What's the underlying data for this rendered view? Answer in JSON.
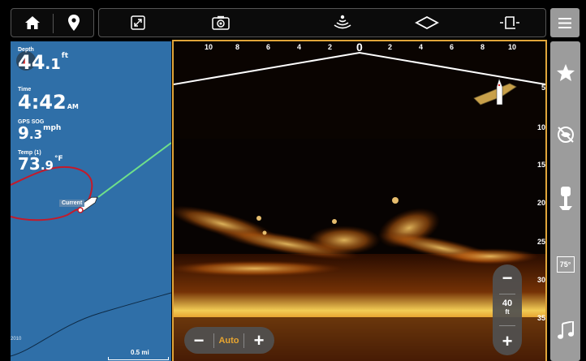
{
  "topbar": {
    "left_icons": [
      "home-icon",
      "map-pin-icon"
    ],
    "mid_icons": [
      "expand-icon",
      "camera-settings-icon",
      "sonar-ping-icon",
      "down-imaging-icon",
      "crop-icon"
    ],
    "menu_icon": "hamburger-menu-icon"
  },
  "chart": {
    "readouts": [
      {
        "label": "Depth",
        "whole": "44",
        "decimal": ".1",
        "unit": "ft"
      },
      {
        "label": "Time",
        "whole": "4:42",
        "decimal": "",
        "unit": "AM"
      },
      {
        "label": "GPS SOG",
        "whole": "9",
        "decimal": ".3",
        "unit": "mph"
      },
      {
        "label": "Temp (1)",
        "whole": "73",
        "decimal": ".9",
        "unit": "°F"
      }
    ],
    "current_label": "Current",
    "scale": "0.5 mi",
    "corner_text": "2010"
  },
  "sonar": {
    "side_scale": [
      "10",
      "8",
      "6",
      "4",
      "2",
      "0",
      "2",
      "4",
      "6",
      "8",
      "10"
    ],
    "depth_scale": [
      "5",
      "10",
      "15",
      "20",
      "25",
      "30",
      "35"
    ],
    "zoom": {
      "minus": "−",
      "mode": "Auto",
      "plus": "+"
    },
    "range": {
      "minus": "−",
      "value": "40",
      "unit": "ft",
      "plus": "+"
    }
  },
  "sidebar": {
    "temp_label": "75°",
    "icons": [
      "star-icon",
      "fish-id-icon",
      "trolling-motor-icon",
      "temperature-icon",
      "music-icon"
    ]
  },
  "colors": {
    "accent": "#e0a53a",
    "chart_water": "#2f6fa8",
    "sidebar": "#9c9c9c"
  }
}
